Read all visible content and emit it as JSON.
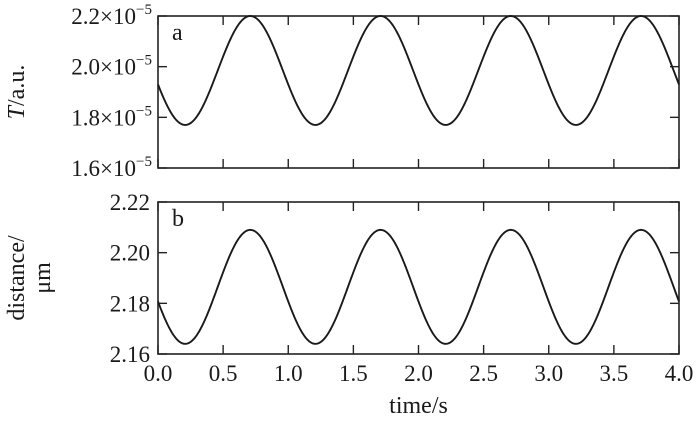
{
  "chart_data": [
    {
      "type": "line",
      "panel_label": "a",
      "ylabel_italic": "T",
      "ylabel_rest": "/a.u.",
      "xlim": [
        0,
        4
      ],
      "ylim": [
        1.6e-05,
        2.2e-05
      ],
      "yticks": [
        {
          "mantissa": "1.6",
          "exp": "−5"
        },
        {
          "mantissa": "1.8",
          "exp": "−5"
        },
        {
          "mantissa": "2.0",
          "exp": "−5"
        },
        {
          "mantissa": "2.2",
          "exp": "−5"
        }
      ],
      "ytick_values": [
        1.6e-05,
        1.8e-05,
        2e-05,
        2.2e-05
      ],
      "series": [
        {
          "model": "sinusoid",
          "offset": 1.985e-05,
          "amplitude": 2.15e-06,
          "period_s": 1.0,
          "phase_rad": 0.26,
          "x_range": [
            0,
            4
          ]
        }
      ]
    },
    {
      "type": "line",
      "panel_label": "b",
      "ylabel_line1": "distance/",
      "ylabel_line2": "μm",
      "xlim": [
        0,
        4
      ],
      "ylim": [
        2.16,
        2.22
      ],
      "yticks": [
        "2.16",
        "2.18",
        "2.20",
        "2.22"
      ],
      "ytick_values": [
        2.16,
        2.18,
        2.2,
        2.22
      ],
      "xticks": [
        "0.0",
        "0.5",
        "1.0",
        "1.5",
        "2.0",
        "2.5",
        "3.0",
        "3.5",
        "4.0"
      ],
      "xtick_values": [
        0,
        0.5,
        1,
        1.5,
        2,
        2.5,
        3,
        3.5,
        4
      ],
      "xlabel": "time/s",
      "series": [
        {
          "model": "sinusoid",
          "offset": 2.1865,
          "amplitude": 0.0225,
          "period_s": 1.0,
          "phase_rad": 0.26,
          "x_range": [
            0,
            4
          ]
        }
      ]
    }
  ]
}
